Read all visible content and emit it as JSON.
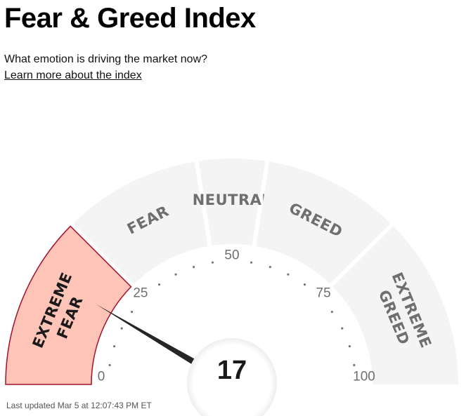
{
  "header": {
    "title": "Fear & Greed Index",
    "subtitle": "What emotion is driving the market now?",
    "learn_link": "Learn more about the index"
  },
  "gauge": {
    "value": 17,
    "value_label": "17",
    "segments": [
      {
        "label": [
          "EXTREME",
          "FEAR"
        ],
        "from": 0,
        "to": 25,
        "active": true
      },
      {
        "label": [
          "FEAR"
        ],
        "from": 25,
        "to": 45,
        "active": false
      },
      {
        "label": [
          "NEUTRAL"
        ],
        "from": 45,
        "to": 55,
        "active": false
      },
      {
        "label": [
          "GREED"
        ],
        "from": 55,
        "to": 75,
        "active": false
      },
      {
        "label": [
          "EXTREME",
          "GREED"
        ],
        "from": 75,
        "to": 100,
        "active": false
      }
    ],
    "scale_labels": [
      {
        "value": 0,
        "text": "0"
      },
      {
        "value": 25,
        "text": "25"
      },
      {
        "value": 50,
        "text": "50"
      },
      {
        "value": 75,
        "text": "75"
      },
      {
        "value": 100,
        "text": "100"
      }
    ],
    "colors": {
      "segment": "#f4f4f4",
      "active_fill": "#ffc4b8",
      "active_stroke": "#a4102c",
      "label": "#6f6f6f",
      "active_label": "#1a1a1a",
      "needle": "#262626",
      "dots": "#777777"
    }
  },
  "footer": {
    "last_updated": "Last updated Mar 5 at 12:07:43 PM ET"
  }
}
